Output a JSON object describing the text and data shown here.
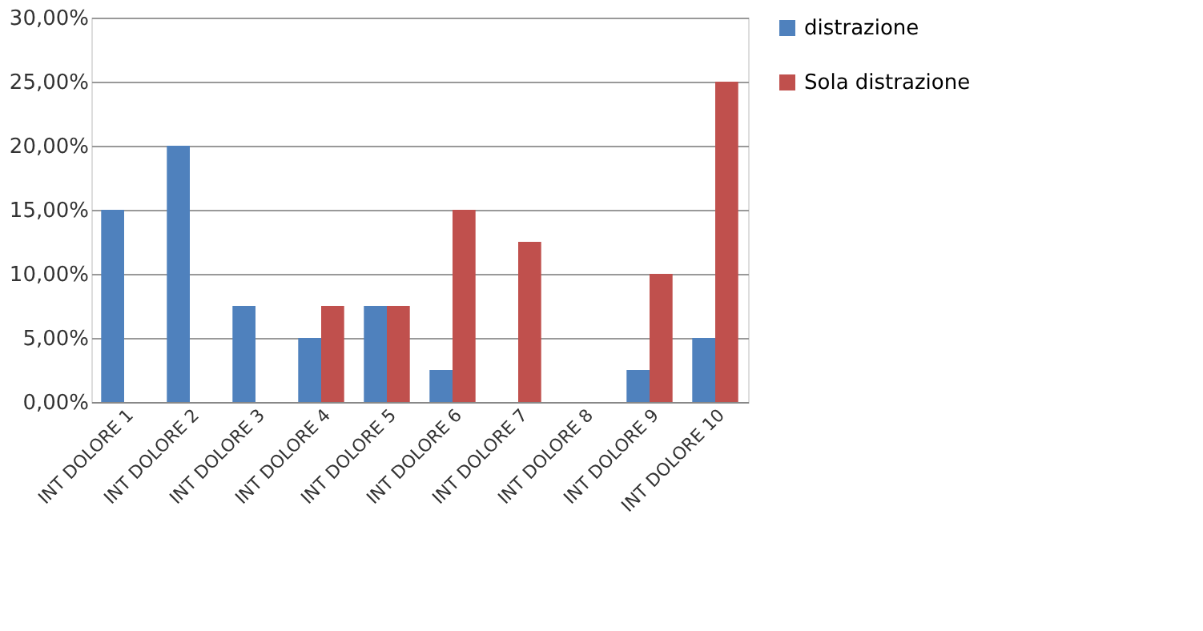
{
  "chart_data": {
    "type": "bar",
    "categories": [
      "INT DOLORE 1",
      "INT DOLORE 2",
      "INT DOLORE 3",
      "INT DOLORE 4",
      "INT DOLORE 5",
      "INT DOLORE 6",
      "INT DOLORE 7",
      "INT DOLORE 8",
      "INT DOLORE 9",
      "INT DOLORE 10"
    ],
    "series": [
      {
        "name": "distrazione",
        "color": "#4f81bd",
        "values": [
          15,
          20,
          7.5,
          5,
          7.5,
          2.5,
          0,
          0,
          2.5,
          5
        ]
      },
      {
        "name": "Sola distrazione",
        "color": "#c0504d",
        "values": [
          0,
          0,
          0,
          7.5,
          7.5,
          15,
          12.5,
          0,
          10,
          25
        ]
      }
    ],
    "ylim": [
      0,
      30
    ],
    "yticks": [
      {
        "value": 0,
        "label": "0,00%"
      },
      {
        "value": 5,
        "label": "5,00%"
      },
      {
        "value": 10,
        "label": "10,00%"
      },
      {
        "value": 15,
        "label": "15,00%"
      },
      {
        "value": 20,
        "label": "20,00%"
      },
      {
        "value": 25,
        "label": "25,00%"
      },
      {
        "value": 30,
        "label": "30,00%"
      }
    ],
    "grid": "y",
    "legend": "right"
  }
}
